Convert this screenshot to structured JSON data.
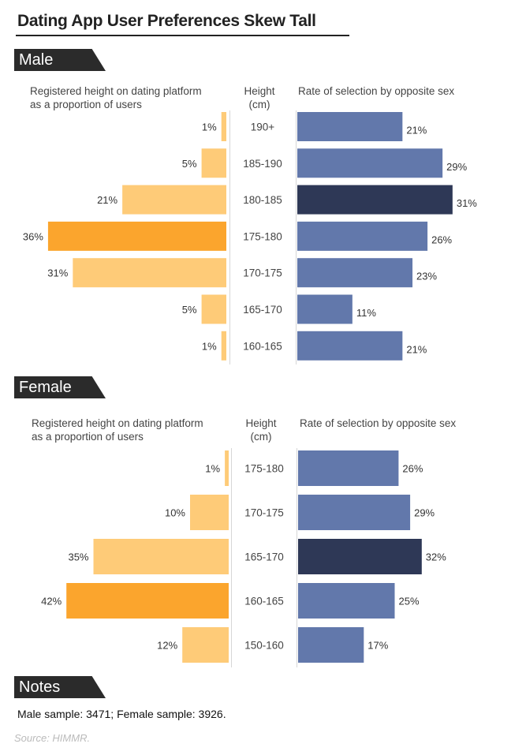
{
  "title": "Dating App User Preferences Skew Tall",
  "sections": {
    "male_label": "Male",
    "female_label": "Female",
    "notes_label": "Notes"
  },
  "headers": {
    "left_line1": "Registered height on dating platform",
    "left_line2": "as a proportion of users",
    "center_line1": "Height",
    "center_line2": "(cm)",
    "right": "Rate of selection by opposite sex"
  },
  "colors": {
    "proportion_light": "#FECB78",
    "proportion_highlight": "#FBA52D",
    "selection": "#6278AB",
    "selection_highlight": "#2E3856",
    "section_tab": "#2B2B2B"
  },
  "chart_data": [
    {
      "type": "bar",
      "title": "Male",
      "categories": [
        "190+",
        "185-190",
        "180-185",
        "175-180",
        "170-175",
        "165-170",
        "160-165"
      ],
      "series": [
        {
          "name": "Registered height on dating platform as a proportion of users",
          "values": [
            1,
            5,
            21,
            36,
            31,
            5,
            1
          ],
          "unit": "%",
          "highlight_index": 3
        },
        {
          "name": "Rate of selection by opposite sex",
          "values": [
            21,
            29,
            31,
            26,
            23,
            11,
            21
          ],
          "unit": "%",
          "highlight_index": 2
        }
      ]
    },
    {
      "type": "bar",
      "title": "Female",
      "categories": [
        "175-180",
        "170-175",
        "165-170",
        "160-165",
        "150-160"
      ],
      "series": [
        {
          "name": "Registered height on dating platform as a proportion of users",
          "values": [
            1,
            10,
            35,
            42,
            12
          ],
          "unit": "%",
          "highlight_index": 3
        },
        {
          "name": "Rate of selection by opposite sex",
          "values": [
            26,
            29,
            32,
            25,
            17
          ],
          "unit": "%",
          "highlight_index": 2
        }
      ]
    }
  ],
  "notes": "Male sample: 3471; Female sample: 3926.",
  "source": "Source:  HIMMR."
}
